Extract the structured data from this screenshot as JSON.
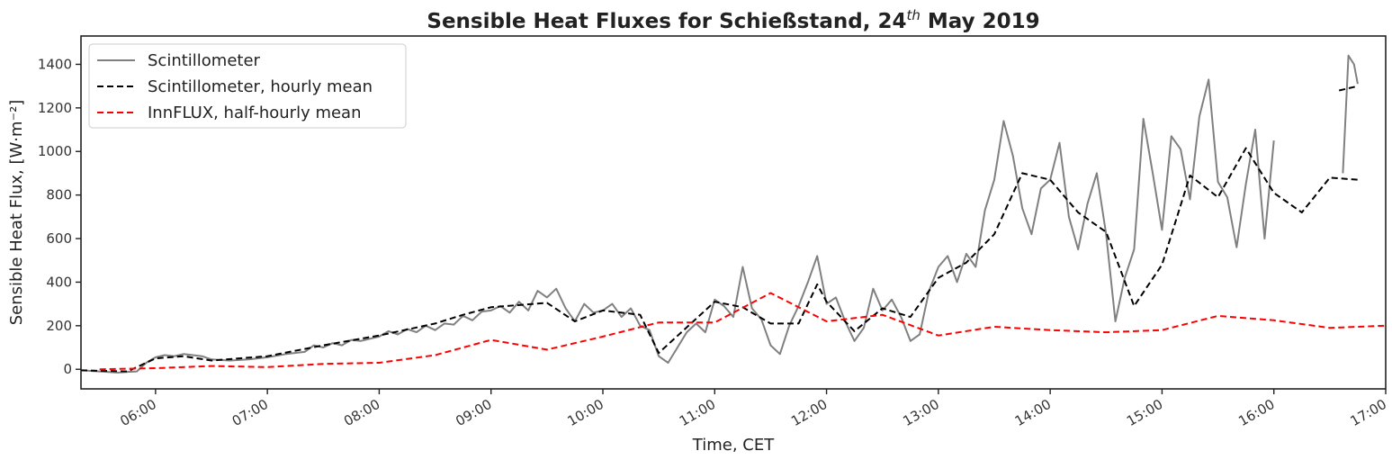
{
  "chart_data": {
    "type": "line",
    "title": "Sensible Heat Fluxes for Schießstand, 24",
    "title_superscript": "th",
    "title_suffix": " May 2019",
    "xlabel": "Time, CET",
    "ylabel": "Sensible Heat Flux, [W·m⁻²]",
    "xlim": [
      "05:20",
      "17:00"
    ],
    "ylim": [
      -90,
      1530
    ],
    "x_ticks": [
      "06:00",
      "07:00",
      "08:00",
      "09:00",
      "10:00",
      "11:00",
      "12:00",
      "13:00",
      "14:00",
      "15:00",
      "16:00",
      "17:00"
    ],
    "y_ticks": [
      0,
      200,
      400,
      600,
      800,
      1000,
      1200,
      1400
    ],
    "grid": false,
    "legend_position": "top-left",
    "series": [
      {
        "name": "Scintillometer",
        "color": "#808080",
        "style": "solid",
        "points": [
          [
            "05:20",
            -5
          ],
          [
            "05:30",
            -10
          ],
          [
            "05:40",
            -15
          ],
          [
            "05:45",
            -12
          ],
          [
            "05:50",
            -10
          ],
          [
            "05:55",
            30
          ],
          [
            "06:00",
            55
          ],
          [
            "06:05",
            65
          ],
          [
            "06:10",
            60
          ],
          [
            "06:15",
            70
          ],
          [
            "06:20",
            65
          ],
          [
            "06:25",
            60
          ],
          [
            "06:30",
            45
          ],
          [
            "06:40",
            40
          ],
          [
            "06:50",
            45
          ],
          [
            "07:00",
            55
          ],
          [
            "07:10",
            70
          ],
          [
            "07:20",
            80
          ],
          [
            "07:25",
            110
          ],
          [
            "07:30",
            100
          ],
          [
            "07:35",
            120
          ],
          [
            "07:40",
            110
          ],
          [
            "07:45",
            135
          ],
          [
            "07:50",
            130
          ],
          [
            "08:00",
            150
          ],
          [
            "08:05",
            175
          ],
          [
            "08:10",
            160
          ],
          [
            "08:15",
            185
          ],
          [
            "08:20",
            170
          ],
          [
            "08:25",
            200
          ],
          [
            "08:30",
            180
          ],
          [
            "08:35",
            210
          ],
          [
            "08:40",
            205
          ],
          [
            "08:45",
            245
          ],
          [
            "08:50",
            225
          ],
          [
            "08:55",
            265
          ],
          [
            "09:00",
            270
          ],
          [
            "09:05",
            290
          ],
          [
            "09:10",
            260
          ],
          [
            "09:15",
            310
          ],
          [
            "09:20",
            270
          ],
          [
            "09:25",
            360
          ],
          [
            "09:30",
            330
          ],
          [
            "09:35",
            370
          ],
          [
            "09:40",
            280
          ],
          [
            "09:45",
            220
          ],
          [
            "09:50",
            300
          ],
          [
            "09:55",
            260
          ],
          [
            "10:00",
            270
          ],
          [
            "10:05",
            300
          ],
          [
            "10:10",
            240
          ],
          [
            "10:15",
            280
          ],
          [
            "10:20",
            200
          ],
          [
            "10:25",
            180
          ],
          [
            "10:30",
            60
          ],
          [
            "10:35",
            30
          ],
          [
            "10:40",
            100
          ],
          [
            "10:45",
            170
          ],
          [
            "10:50",
            210
          ],
          [
            "10:55",
            170
          ],
          [
            "11:00",
            320
          ],
          [
            "11:05",
            290
          ],
          [
            "11:10",
            240
          ],
          [
            "11:15",
            470
          ],
          [
            "11:20",
            280
          ],
          [
            "11:25",
            230
          ],
          [
            "11:30",
            110
          ],
          [
            "11:35",
            70
          ],
          [
            "11:40",
            200
          ],
          [
            "11:45",
            290
          ],
          [
            "11:50",
            400
          ],
          [
            "11:55",
            520
          ],
          [
            "12:00",
            300
          ],
          [
            "12:05",
            330
          ],
          [
            "12:10",
            220
          ],
          [
            "12:15",
            130
          ],
          [
            "12:20",
            190
          ],
          [
            "12:25",
            370
          ],
          [
            "12:30",
            270
          ],
          [
            "12:35",
            320
          ],
          [
            "12:40",
            240
          ],
          [
            "12:45",
            130
          ],
          [
            "12:50",
            160
          ],
          [
            "12:55",
            360
          ],
          [
            "13:00",
            470
          ],
          [
            "13:05",
            520
          ],
          [
            "13:10",
            400
          ],
          [
            "13:15",
            530
          ],
          [
            "13:20",
            470
          ],
          [
            "13:25",
            730
          ],
          [
            "13:30",
            870
          ],
          [
            "13:35",
            1140
          ],
          [
            "13:40",
            980
          ],
          [
            "13:45",
            740
          ],
          [
            "13:50",
            620
          ],
          [
            "13:55",
            830
          ],
          [
            "14:00",
            870
          ],
          [
            "14:05",
            1040
          ],
          [
            "14:10",
            700
          ],
          [
            "14:15",
            550
          ],
          [
            "14:20",
            760
          ],
          [
            "14:25",
            900
          ],
          [
            "14:30",
            620
          ],
          [
            "14:35",
            220
          ],
          [
            "14:40",
            420
          ],
          [
            "14:45",
            550
          ],
          [
            "14:50",
            1150
          ],
          [
            "14:55",
            900
          ],
          [
            "15:00",
            640
          ],
          [
            "15:05",
            1070
          ],
          [
            "15:10",
            1010
          ],
          [
            "15:15",
            780
          ],
          [
            "15:20",
            1160
          ],
          [
            "15:25",
            1330
          ],
          [
            "15:30",
            860
          ],
          [
            "15:35",
            790
          ],
          [
            "15:40",
            560
          ],
          [
            "15:45",
            850
          ],
          [
            "15:50",
            1100
          ],
          [
            "15:55",
            600
          ],
          [
            "16:00",
            1050
          ]
        ]
      },
      {
        "name": "Scintillometer",
        "legend": false,
        "color": "#808080",
        "style": "solid",
        "points": [
          [
            "16:37",
            900
          ],
          [
            "16:40",
            1440
          ],
          [
            "16:43",
            1400
          ],
          [
            "16:45",
            1310
          ]
        ]
      },
      {
        "name": "Scintillometer, hourly mean",
        "color": "#000000",
        "style": "dashed",
        "points": [
          [
            "05:20",
            -5
          ],
          [
            "05:45",
            -10
          ],
          [
            "06:00",
            50
          ],
          [
            "06:15",
            60
          ],
          [
            "06:30",
            40
          ],
          [
            "07:00",
            60
          ],
          [
            "07:30",
            110
          ],
          [
            "08:00",
            155
          ],
          [
            "08:30",
            210
          ],
          [
            "08:45",
            250
          ],
          [
            "09:00",
            285
          ],
          [
            "09:30",
            305
          ],
          [
            "09:45",
            220
          ],
          [
            "10:00",
            270
          ],
          [
            "10:20",
            250
          ],
          [
            "10:30",
            75
          ],
          [
            "11:00",
            310
          ],
          [
            "11:15",
            285
          ],
          [
            "11:30",
            210
          ],
          [
            "11:45",
            210
          ],
          [
            "11:55",
            390
          ],
          [
            "12:00",
            310
          ],
          [
            "12:15",
            175
          ],
          [
            "12:30",
            280
          ],
          [
            "12:45",
            240
          ],
          [
            "13:00",
            420
          ],
          [
            "13:15",
            490
          ],
          [
            "13:30",
            620
          ],
          [
            "13:45",
            900
          ],
          [
            "14:00",
            870
          ],
          [
            "14:15",
            720
          ],
          [
            "14:30",
            630
          ],
          [
            "14:45",
            290
          ],
          [
            "15:00",
            480
          ],
          [
            "15:15",
            890
          ],
          [
            "15:30",
            790
          ],
          [
            "15:45",
            1015
          ],
          [
            "16:00",
            810
          ],
          [
            "16:15",
            720
          ],
          [
            "16:30",
            880
          ],
          [
            "16:45",
            870
          ]
        ]
      },
      {
        "name": "Scintillometer, hourly mean",
        "legend": false,
        "color": "#000000",
        "style": "dashed",
        "points": [
          [
            "16:35",
            1280
          ],
          [
            "16:45",
            1300
          ]
        ]
      },
      {
        "name": "InnFLUX, half-hourly mean",
        "color": "#ff0000",
        "style": "dashed",
        "points": [
          [
            "05:30",
            0
          ],
          [
            "06:00",
            5
          ],
          [
            "06:30",
            15
          ],
          [
            "07:00",
            10
          ],
          [
            "07:30",
            25
          ],
          [
            "08:00",
            30
          ],
          [
            "08:30",
            65
          ],
          [
            "09:00",
            135
          ],
          [
            "09:30",
            90
          ],
          [
            "10:00",
            150
          ],
          [
            "10:30",
            215
          ],
          [
            "11:00",
            215
          ],
          [
            "11:30",
            350
          ],
          [
            "12:00",
            220
          ],
          [
            "12:30",
            250
          ],
          [
            "13:00",
            155
          ],
          [
            "13:30",
            195
          ],
          [
            "14:00",
            180
          ],
          [
            "14:30",
            170
          ],
          [
            "15:00",
            180
          ],
          [
            "15:30",
            245
          ],
          [
            "16:00",
            225
          ],
          [
            "16:30",
            190
          ],
          [
            "17:00",
            200
          ]
        ]
      }
    ]
  }
}
